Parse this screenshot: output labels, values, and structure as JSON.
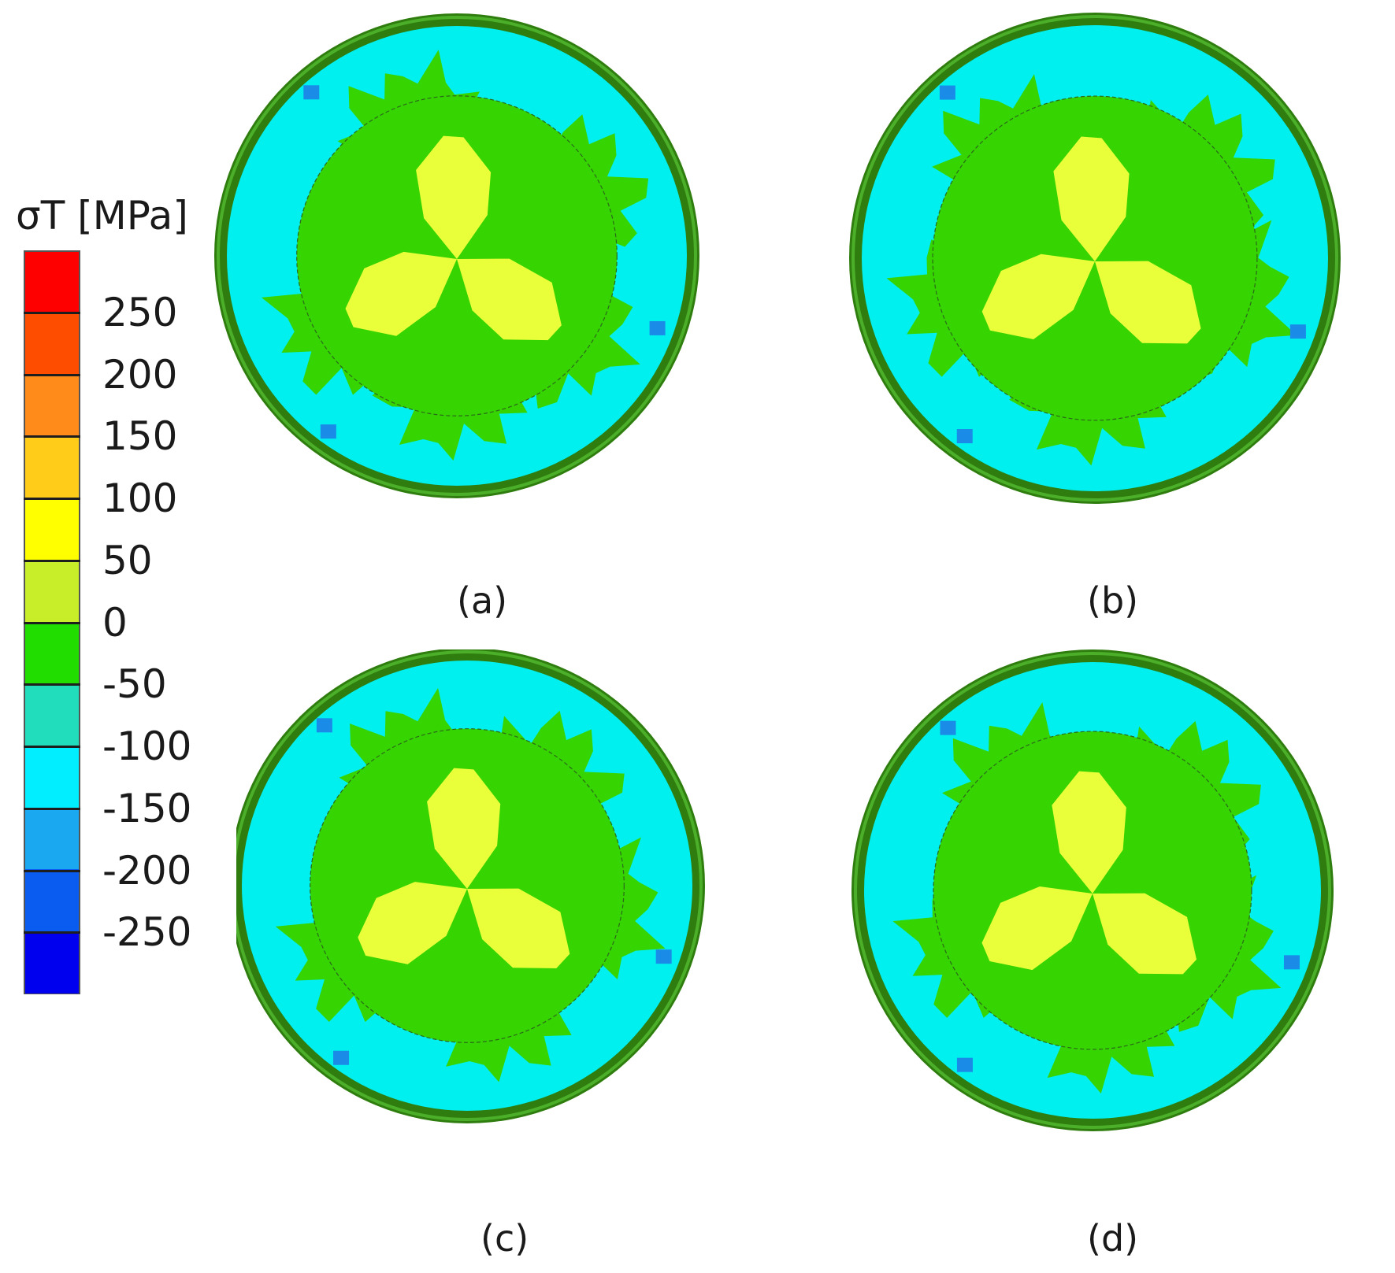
{
  "legend": {
    "title": "σT [MPa]",
    "ticks": [
      "250",
      "200",
      "150",
      "100",
      "50",
      "0",
      "-50",
      "-100",
      "-150",
      "-200",
      "-250"
    ],
    "bins": [
      "#ff0000",
      "#ff4d00",
      "#ff8c1a",
      "#ffcc1a",
      "#ffff00",
      "#c8ee2a",
      "#22dd00",
      "#22ddbb",
      "#00eeff",
      "#1aa8f0",
      "#0a5cf0",
      "#0000ee"
    ]
  },
  "colors": {
    "ring": "#2e7d0e",
    "ring_highlight": "#4caf2a",
    "compressive": "#00f0f0",
    "neutral": "#36d400",
    "tensile": "#e8ff3a",
    "high_compressive": "#1a8ce8"
  },
  "panels": [
    {
      "label": "(a)"
    },
    {
      "label": "(b)"
    },
    {
      "label": "(c)"
    },
    {
      "label": "(d)"
    }
  ]
}
